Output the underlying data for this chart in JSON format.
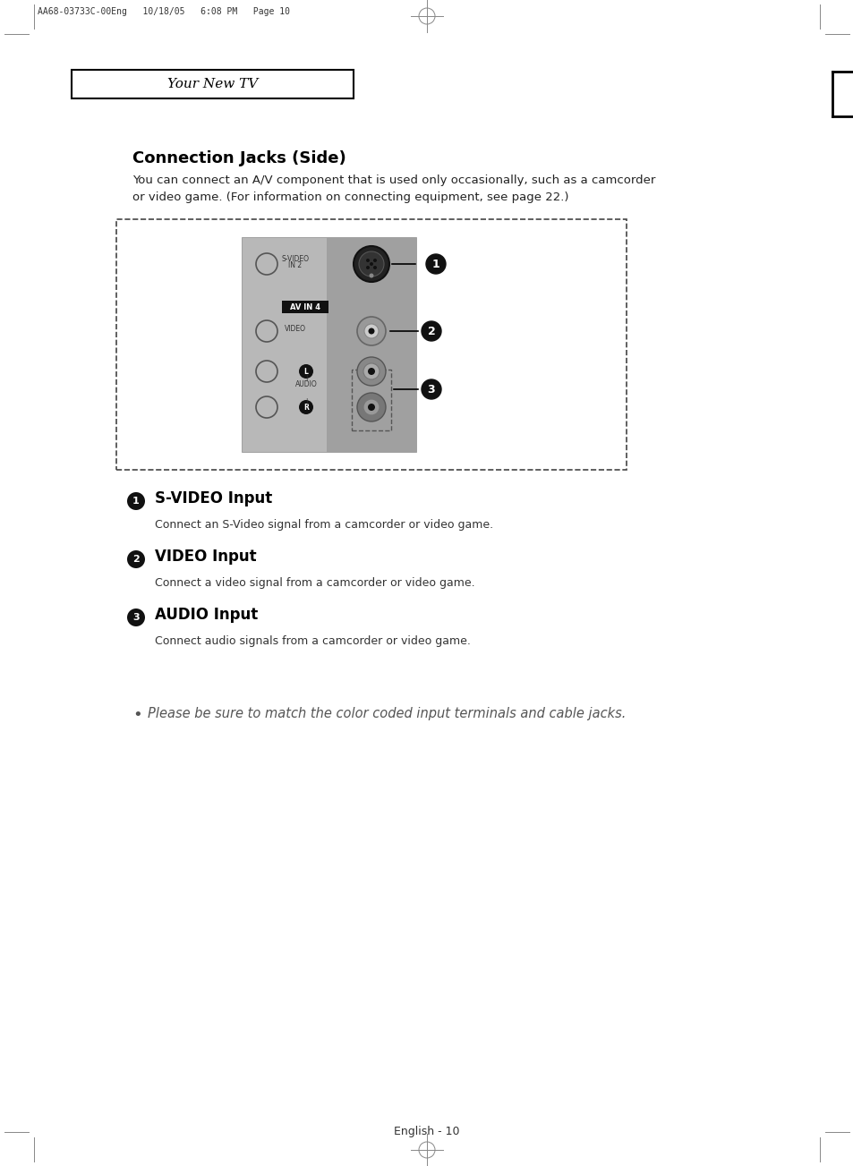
{
  "bg_color": "#ffffff",
  "header_text": "AA68-03733C-00Eng   10/18/05   6:08 PM   Page 10",
  "section_title": "Your New TV",
  "page_title": "Connection Jacks (Side)",
  "intro_text": "You can connect an A/V component that is used only occasionally, such as a camcorder\nor video game. (For information on connecting equipment, see page 22.)",
  "footer_text": "English - 10",
  "item1_title": "S-VIDEO Input",
  "item1_desc": "Connect an S-Video signal from a camcorder or video game.",
  "item2_title": "VIDEO Input",
  "item2_desc": "Connect a video signal from a camcorder or video game.",
  "item3_title": "AUDIO Input",
  "item3_desc": "Connect audio signals from a camcorder or video game.",
  "bullet_text": "Please be sure to match the color coded input terminals and cable jacks.",
  "text_color": "#000000",
  "gray_color": "#aaaaaa",
  "dark_gray": "#555555",
  "light_gray": "#c8c8c8",
  "panel_gray": "#b0b0b0"
}
